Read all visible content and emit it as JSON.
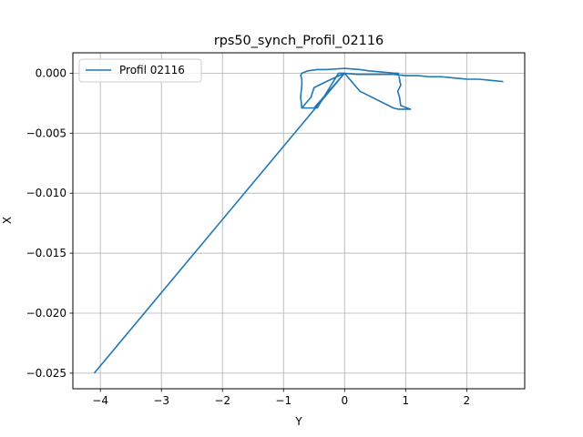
{
  "chart_data": {
    "type": "line",
    "title": "rps50_synch_Profil_02116",
    "xlabel": "Y",
    "ylabel": "X",
    "xlim": [
      -4.45,
      2.95
    ],
    "ylim": [
      -0.0263,
      0.0017
    ],
    "xticks": [
      -4,
      -3,
      -2,
      -1,
      0,
      1,
      2
    ],
    "xtick_labels": [
      "−4",
      "−3",
      "−2",
      "−1",
      "0",
      "1",
      "2"
    ],
    "yticks": [
      0.0,
      -0.005,
      -0.01,
      -0.015,
      -0.02,
      -0.025
    ],
    "ytick_labels": [
      "0.000",
      "−0.005",
      "−0.010",
      "−0.015",
      "−0.020",
      "−0.025"
    ],
    "grid": true,
    "legend_position": "top-left",
    "series": [
      {
        "name": "Profil 02116",
        "color": "#1f77b4",
        "x": [
          -4.1,
          0.0,
          0.25,
          0.8,
          0.88,
          1.08,
          0.92,
          0.9,
          0.87,
          0.92,
          0.9,
          0.88,
          0.82,
          0.6,
          0.4,
          0.25,
          0.0,
          -0.3,
          -0.45,
          -0.6,
          -0.7,
          -0.72,
          -0.7,
          -0.7,
          -0.72,
          -0.7,
          -0.5,
          0.0,
          -0.3,
          -0.5,
          -0.55,
          -0.7,
          -0.45,
          -0.1,
          0.0,
          0.2,
          0.4,
          0.6,
          0.8,
          1.0,
          1.2,
          1.4,
          1.6,
          1.8,
          2.0,
          2.2,
          2.4,
          2.6
        ],
        "y": [
          -0.025,
          0.0,
          -0.0015,
          -0.0029,
          -0.003,
          -0.003,
          -0.0027,
          -0.002,
          -0.0015,
          -0.001,
          -0.0005,
          0.0,
          0.0,
          0.0001,
          0.0002,
          0.0003,
          0.0004,
          0.0003,
          0.0003,
          0.0002,
          0.0,
          -0.0002,
          -0.0005,
          -0.001,
          -0.002,
          -0.0029,
          -0.0029,
          0.0,
          -0.0007,
          -0.0012,
          -0.002,
          -0.0029,
          -0.0029,
          0.0,
          0.0,
          -0.0001,
          -0.0001,
          -0.0001,
          -0.0001,
          -0.0002,
          -0.0002,
          -0.0003,
          -0.0003,
          -0.0004,
          -0.0005,
          -0.0005,
          -0.0006,
          -0.0007
        ]
      }
    ]
  }
}
